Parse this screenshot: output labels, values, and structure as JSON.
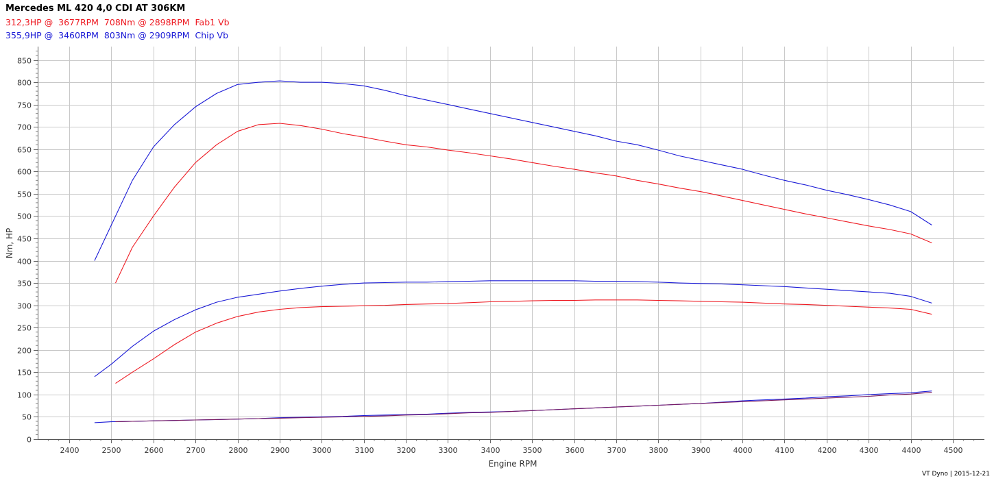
{
  "header": {
    "title": "Mercedes ML 420 4,0 CDI AT 306KM",
    "fab_summary": "312,3HP @  3677RPM  708Nm @ 2898RPM  Fab1 Vb",
    "chip_summary": "355,9HP @  3460RPM  803Nm @ 2909RPM  Chip Vb"
  },
  "footer": {
    "text": "VT Dyno | 2015-12-21"
  },
  "colors": {
    "fab": "#ee1b23",
    "chip": "#1a1ad6",
    "loss": "#7a1a60"
  },
  "chart_data": {
    "type": "line",
    "xlabel": "Engine RPM",
    "ylabel": "Nm, HP",
    "xlim": [
      2325,
      4575
    ],
    "ylim": [
      0,
      880
    ],
    "x_ticks": [
      2400,
      2500,
      2600,
      2700,
      2800,
      2900,
      3000,
      3100,
      3200,
      3300,
      3400,
      3500,
      3600,
      3700,
      3800,
      3900,
      4000,
      4100,
      4200,
      4300,
      4400,
      4500
    ],
    "y_ticks": [
      0,
      50,
      100,
      150,
      200,
      250,
      300,
      350,
      400,
      450,
      500,
      550,
      600,
      650,
      700,
      750,
      800,
      850
    ],
    "grid": true,
    "series": [
      {
        "key": "chip_torque",
        "color": "chip",
        "x": [
          2460,
          2500,
          2550,
          2600,
          2650,
          2700,
          2750,
          2800,
          2850,
          2900,
          2950,
          3000,
          3050,
          3100,
          3150,
          3200,
          3250,
          3300,
          3350,
          3400,
          3450,
          3500,
          3550,
          3600,
          3650,
          3700,
          3750,
          3800,
          3850,
          3900,
          3950,
          4000,
          4050,
          4100,
          4150,
          4200,
          4250,
          4300,
          4350,
          4400,
          4450
        ],
        "y": [
          400,
          480,
          580,
          655,
          705,
          745,
          775,
          795,
          800,
          803,
          800,
          800,
          797,
          792,
          782,
          770,
          760,
          750,
          740,
          730,
          720,
          710,
          700,
          690,
          680,
          668,
          660,
          648,
          635,
          625,
          615,
          605,
          592,
          580,
          570,
          558,
          548,
          537,
          525,
          510,
          480
        ]
      },
      {
        "key": "fab_torque",
        "color": "fab",
        "x": [
          2510,
          2550,
          2600,
          2650,
          2700,
          2750,
          2800,
          2850,
          2900,
          2950,
          3000,
          3050,
          3100,
          3150,
          3200,
          3250,
          3300,
          3350,
          3400,
          3450,
          3500,
          3550,
          3600,
          3650,
          3700,
          3750,
          3800,
          3850,
          3900,
          3950,
          4000,
          4050,
          4100,
          4150,
          4200,
          4250,
          4300,
          4350,
          4400,
          4450
        ],
        "y": [
          350,
          430,
          500,
          565,
          620,
          660,
          690,
          705,
          708,
          703,
          695,
          685,
          677,
          668,
          660,
          655,
          648,
          642,
          635,
          628,
          620,
          612,
          605,
          597,
          590,
          580,
          572,
          563,
          555,
          545,
          535,
          525,
          515,
          505,
          496,
          487,
          478,
          470,
          460,
          440
        ]
      },
      {
        "key": "chip_power",
        "color": "chip",
        "x": [
          2460,
          2500,
          2550,
          2600,
          2650,
          2700,
          2750,
          2800,
          2850,
          2900,
          2950,
          3000,
          3050,
          3100,
          3150,
          3200,
          3250,
          3300,
          3350,
          3400,
          3450,
          3500,
          3550,
          3600,
          3650,
          3700,
          3750,
          3800,
          3850,
          3900,
          3950,
          4000,
          4050,
          4100,
          4150,
          4200,
          4250,
          4300,
          4350,
          4400,
          4450
        ],
        "y": [
          140,
          168,
          208,
          242,
          268,
          290,
          307,
          318,
          325,
          332,
          338,
          343,
          347,
          350,
          351,
          352,
          352,
          353,
          354,
          355,
          355,
          355,
          355,
          355,
          354,
          354,
          353,
          352,
          350,
          349,
          348,
          346,
          344,
          342,
          339,
          336,
          333,
          330,
          327,
          320,
          305
        ]
      },
      {
        "key": "fab_power",
        "color": "fab",
        "x": [
          2510,
          2550,
          2600,
          2650,
          2700,
          2750,
          2800,
          2850,
          2900,
          2950,
          3000,
          3050,
          3100,
          3150,
          3200,
          3250,
          3300,
          3350,
          3400,
          3450,
          3500,
          3550,
          3600,
          3650,
          3700,
          3750,
          3800,
          3850,
          3900,
          3950,
          4000,
          4050,
          4100,
          4150,
          4200,
          4250,
          4300,
          4350,
          4400,
          4450
        ],
        "y": [
          125,
          150,
          180,
          212,
          240,
          260,
          275,
          285,
          291,
          295,
          297,
          298,
          299,
          300,
          302,
          303,
          304,
          306,
          308,
          309,
          310,
          311,
          311,
          312,
          312,
          312,
          311,
          310,
          309,
          308,
          307,
          305,
          303,
          302,
          300,
          298,
          296,
          294,
          291,
          280
        ]
      },
      {
        "key": "chip_loss",
        "color": "chip",
        "x": [
          2460,
          2500,
          2550,
          2600,
          2650,
          2700,
          2750,
          2800,
          2850,
          2900,
          2950,
          3000,
          3050,
          3100,
          3150,
          3200,
          3250,
          3300,
          3350,
          3400,
          3450,
          3500,
          3550,
          3600,
          3650,
          3700,
          3750,
          3800,
          3850,
          3900,
          3950,
          4000,
          4050,
          4100,
          4150,
          4200,
          4250,
          4300,
          4350,
          4400,
          4450
        ],
        "y": [
          37,
          39,
          40,
          41,
          42,
          43,
          44,
          45,
          46,
          48,
          49,
          50,
          51,
          53,
          54,
          55,
          56,
          58,
          60,
          61,
          62,
          64,
          66,
          68,
          70,
          72,
          74,
          76,
          78,
          80,
          83,
          86,
          88,
          90,
          92,
          95,
          97,
          100,
          102,
          104,
          108
        ]
      },
      {
        "key": "fab_loss",
        "color": "loss",
        "x": [
          2510,
          2550,
          2600,
          2650,
          2700,
          2750,
          2800,
          2850,
          2900,
          2950,
          3000,
          3050,
          3100,
          3150,
          3200,
          3250,
          3300,
          3350,
          3400,
          3450,
          3500,
          3550,
          3600,
          3650,
          3700,
          3750,
          3800,
          3850,
          3900,
          3950,
          4000,
          4050,
          4100,
          4150,
          4200,
          4250,
          4300,
          4350,
          4400,
          4450
        ],
        "y": [
          39,
          40,
          41,
          42,
          43,
          44,
          45,
          46,
          47,
          48,
          49,
          50,
          51,
          52,
          54,
          55,
          57,
          59,
          60,
          62,
          64,
          66,
          68,
          70,
          72,
          74,
          76,
          78,
          80,
          82,
          84,
          86,
          88,
          90,
          92,
          94,
          96,
          99,
          101,
          105
        ]
      }
    ]
  }
}
